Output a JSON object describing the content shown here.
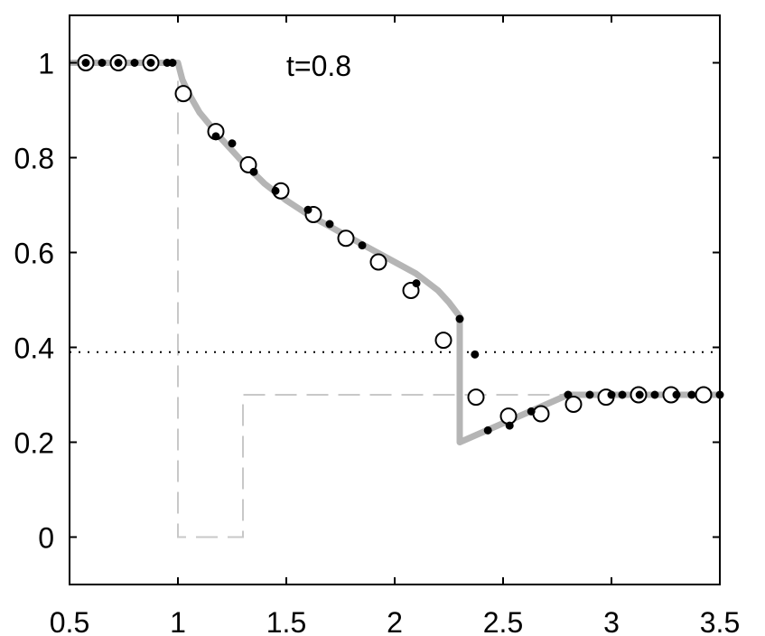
{
  "chart_data": {
    "type": "line",
    "title": "",
    "xlabel": "",
    "ylabel": "",
    "xlim": [
      0.5,
      3.5
    ],
    "ylim": [
      -0.1,
      1.1
    ],
    "x_ticks": [
      "0.5",
      "1",
      "1.5",
      "2",
      "2.5",
      "3",
      "3.5"
    ],
    "y_ticks": [
      "0",
      "0.2",
      "0.4",
      "0.6",
      "0.8",
      "1"
    ],
    "grid": false,
    "annotation": "t=0.8",
    "colors": {
      "solution": "#b5b5b5",
      "initial": "#c8c8c8",
      "markers": "#000000"
    },
    "series": [
      {
        "style": "thick-gray-solid",
        "x": [
          0.5,
          1.0,
          1.02,
          1.05,
          1.1,
          1.2,
          1.3,
          1.4,
          1.5,
          1.6,
          1.7,
          1.8,
          1.9,
          2.0,
          2.1,
          2.2,
          2.25,
          2.3,
          2.3,
          2.4,
          2.5,
          2.6,
          2.7,
          2.8,
          3.5
        ],
        "y": [
          1.0,
          1.0,
          0.965,
          0.935,
          0.895,
          0.84,
          0.79,
          0.745,
          0.71,
          0.68,
          0.655,
          0.63,
          0.605,
          0.58,
          0.555,
          0.52,
          0.495,
          0.465,
          0.2,
          0.22,
          0.24,
          0.26,
          0.28,
          0.3,
          0.3
        ]
      },
      {
        "style": "light-gray-dashed",
        "x": [
          0.5,
          1.0,
          1.0,
          1.3,
          1.3,
          3.5
        ],
        "y": [
          1.0,
          1.0,
          0.0,
          0.0,
          0.3,
          0.3
        ]
      },
      {
        "style": "black-dotted",
        "x": [
          0.5,
          3.5
        ],
        "y": [
          0.39,
          0.39
        ]
      },
      {
        "style": "open-circle",
        "x": [
          0.575,
          0.725,
          0.875,
          1.025,
          1.175,
          1.325,
          1.475,
          1.625,
          1.775,
          1.925,
          2.075,
          2.225,
          2.375,
          2.525,
          2.675,
          2.825,
          2.975,
          3.125,
          3.275,
          3.425
        ],
        "y": [
          1.0,
          1.0,
          1.0,
          0.935,
          0.855,
          0.785,
          0.73,
          0.68,
          0.63,
          0.58,
          0.52,
          0.415,
          0.295,
          0.255,
          0.26,
          0.28,
          0.295,
          0.3,
          0.3,
          0.3
        ]
      },
      {
        "style": "filled-dot",
        "x": [
          0.575,
          0.65,
          0.725,
          0.8,
          0.875,
          0.95,
          0.975,
          1.175,
          1.25,
          1.35,
          1.45,
          1.6,
          1.7,
          1.85,
          2.1,
          2.3,
          2.37,
          2.43,
          2.53,
          2.63,
          2.8,
          2.9,
          3.0,
          3.05,
          3.13,
          3.2,
          3.3,
          3.37,
          3.5
        ],
        "y": [
          1.0,
          1.0,
          1.0,
          1.0,
          1.0,
          1.0,
          1.0,
          0.845,
          0.83,
          0.77,
          0.73,
          0.69,
          0.66,
          0.615,
          0.535,
          0.46,
          0.385,
          0.225,
          0.235,
          0.265,
          0.3,
          0.3,
          0.3,
          0.3,
          0.3,
          0.3,
          0.3,
          0.3,
          0.3
        ]
      }
    ]
  }
}
